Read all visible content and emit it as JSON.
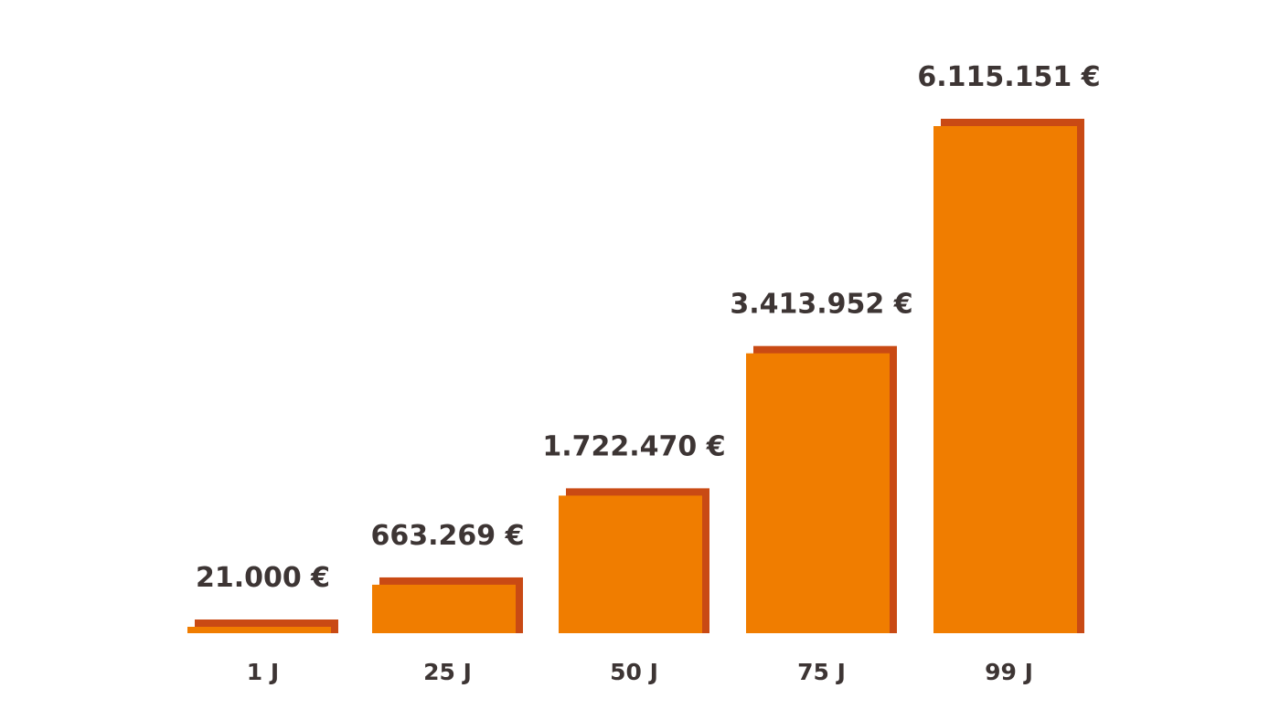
{
  "chart_data": {
    "type": "bar",
    "categories": [
      "1 J",
      "25 J",
      "50 J",
      "75 J",
      "99 J"
    ],
    "values": [
      21000,
      663269,
      1722470,
      3413952,
      6115151
    ],
    "value_labels": [
      "21.000 €",
      "663.269 €",
      "1.722.470 €",
      "3.413.952 €",
      "6.115.151 €"
    ],
    "title": "",
    "xlabel": "",
    "ylabel": "",
    "ylim": [
      0,
      6115151
    ],
    "grid": false,
    "legend": "none",
    "colors": {
      "bar_fill": "#f07d00",
      "bar_shadow": "#c94a14",
      "text": "#3d3534",
      "background": "#ffffff"
    }
  }
}
